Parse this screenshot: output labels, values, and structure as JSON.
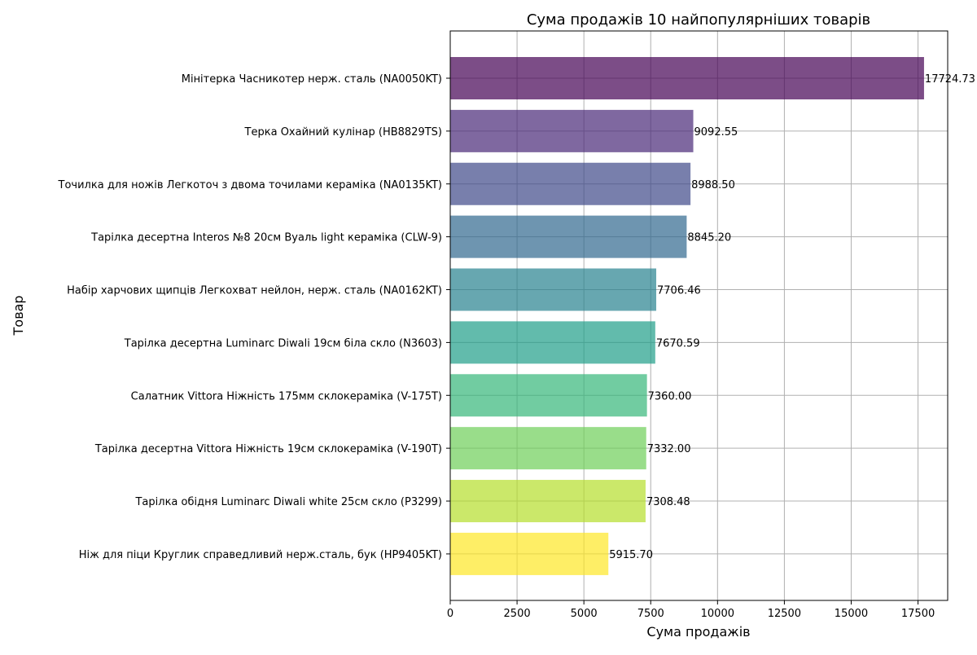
{
  "chart_data": {
    "type": "bar",
    "orientation": "horizontal",
    "title": "Сума продажів 10 найпопулярніших товарів",
    "xlabel": "Сума продажів",
    "ylabel": "Товар",
    "xlim": [
      0,
      18610
    ],
    "xticks": [
      0,
      2500,
      5000,
      7500,
      10000,
      12500,
      15000,
      17500
    ],
    "grid": true,
    "categories": [
      "Мінітерка Часникотер нерж. сталь (NA0050KT)",
      "Терка Охайний кулінар (HB8829TS)",
      "Точилка для ножів Легкоточ з двома точилами кераміка (NA0135KT)",
      "Тарілка десертна Interos №8 20см Вуаль light кераміка (CLW-9)",
      "Набір харчових щипців Легкохват нейлон, нерж. сталь (NA0162KT)",
      "Тарілка десертна Luminarc Diwali 19см біла скло (N3603)",
      "Салатник Vittora Ніжність 175мм склокераміка (V-175T)",
      "Тарілка десертна Vittora Ніжність 19см склокераміка (V-190T)",
      "Тарілка обідня Luminarc Diwali white 25см скло (P3299)",
      "Ніж для піци Круглик справедливий нерж.сталь, бук (HP9405KT)"
    ],
    "values": [
      17724.73,
      9092.55,
      8988.5,
      8845.2,
      7706.46,
      7670.59,
      7360.0,
      7332.0,
      7308.48,
      5915.7
    ],
    "value_labels": [
      "17724.73",
      "9092.55",
      "8988.50",
      "8845.20",
      "7706.46",
      "7670.59",
      "7360.00",
      "7332.00",
      "7308.48",
      "5915.70"
    ],
    "colors": [
      "#440154",
      "#482878",
      "#3e4989",
      "#31688e",
      "#26828e",
      "#1f9e89",
      "#35b779",
      "#6ece58",
      "#b5de2b",
      "#fde725"
    ],
    "bar_alpha": 0.7
  }
}
